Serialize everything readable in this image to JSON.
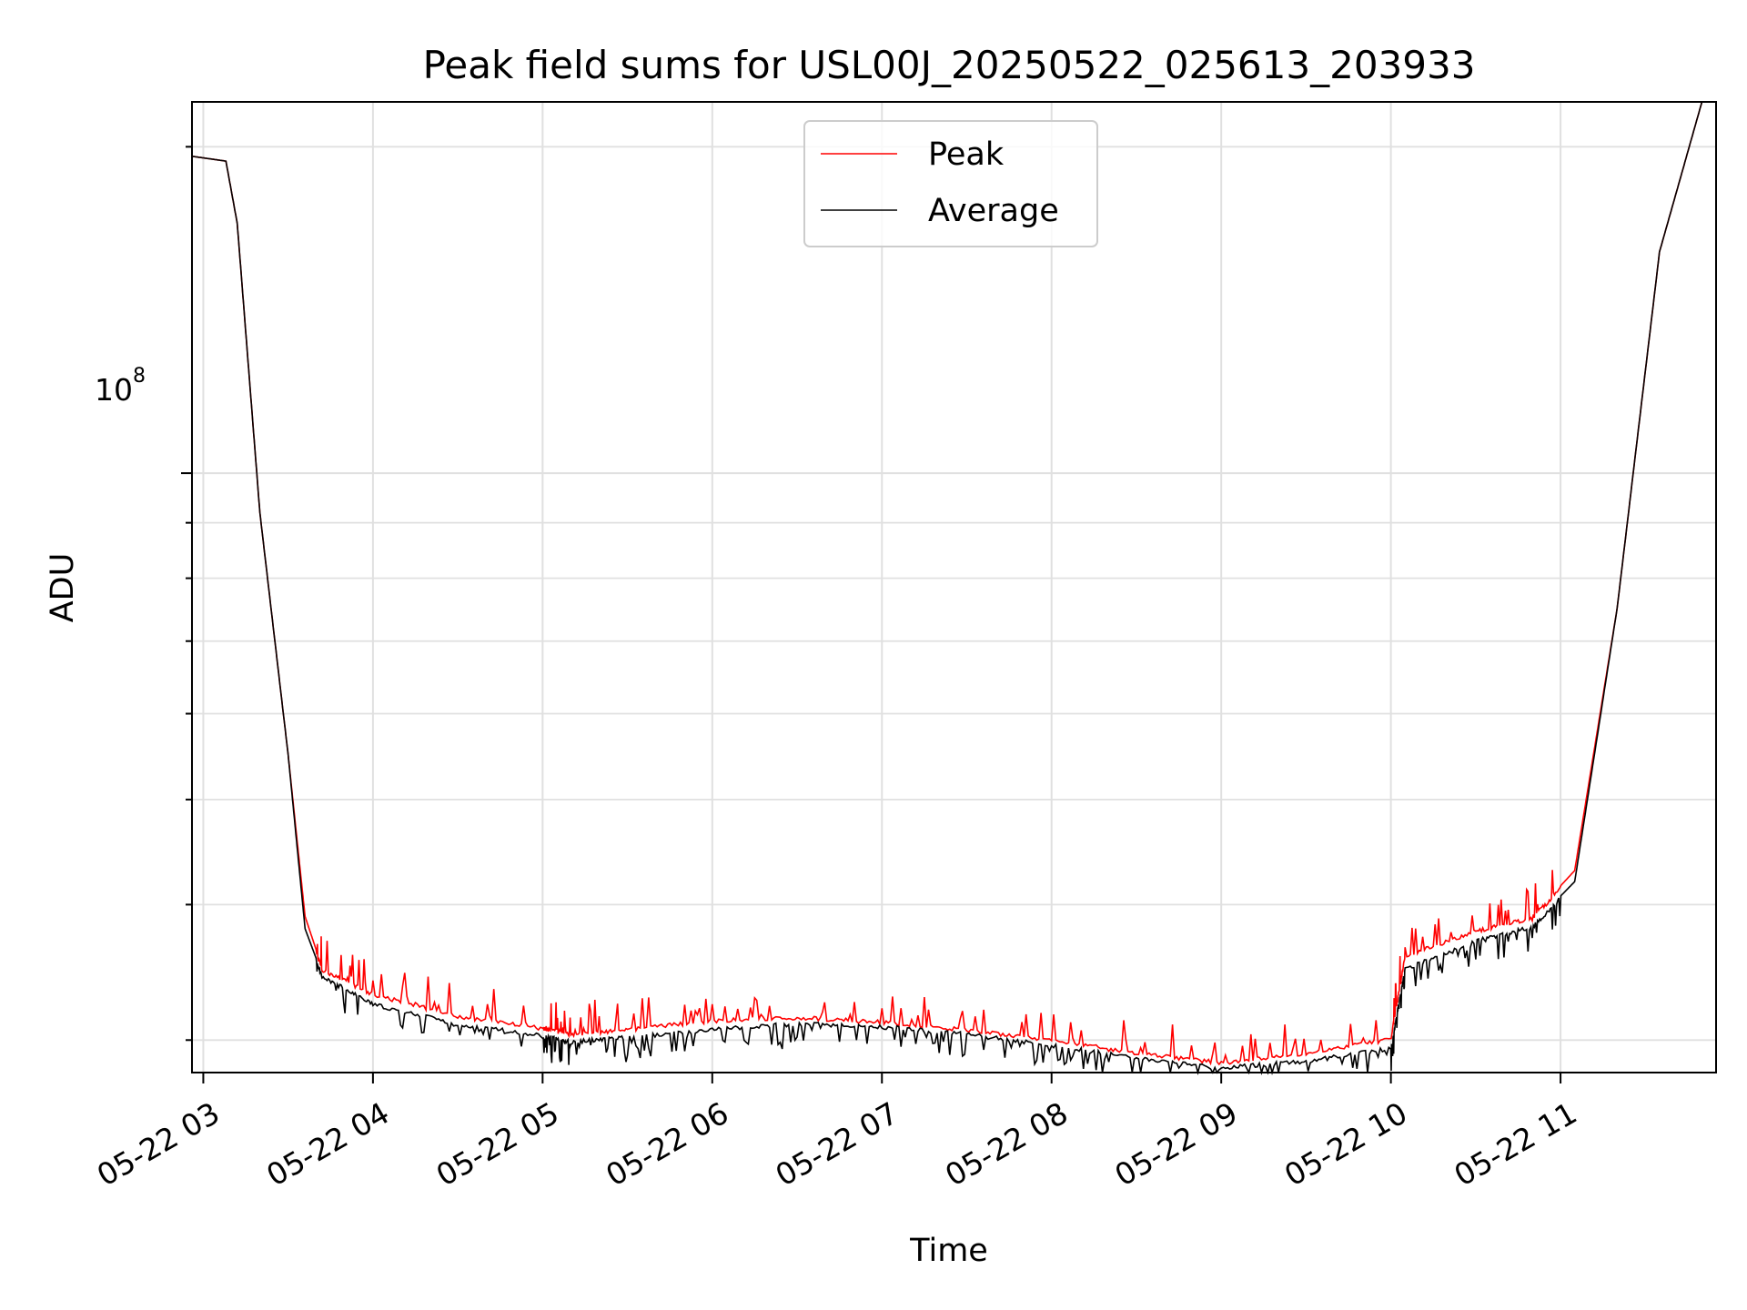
{
  "chart_data": {
    "type": "line",
    "title": "Peak field sums for USL00J_20250522_025613_203933",
    "xlabel": "Time",
    "ylabel": "ADU",
    "y_scale": "log",
    "ylim": [
      28000000,
      220000000
    ],
    "xlim": [
      "2025-05-22 02:56",
      "2025-05-22 11:55"
    ],
    "x_tick_labels": [
      "05-22 03",
      "05-22 04",
      "05-22 05",
      "05-22 06",
      "05-22 07",
      "05-22 08",
      "05-22 09",
      "05-22 10",
      "05-22 11"
    ],
    "x_ticks": [
      "2025-05-22 03:00",
      "2025-05-22 04:00",
      "2025-05-22 05:00",
      "2025-05-22 06:00",
      "2025-05-22 07:00",
      "2025-05-22 08:00",
      "2025-05-22 09:00",
      "2025-05-22 10:00",
      "2025-05-22 11:00"
    ],
    "y_major_tick_label": "10",
    "y_major_tick_exponent": "8",
    "y_major_tick_value": 100000000,
    "grid": true,
    "legend_position": "upper center",
    "series": [
      {
        "name": "Peak",
        "color": "#ff0000",
        "x": [
          "2025-05-22 02:56",
          "2025-05-22 03:08",
          "2025-05-22 03:12",
          "2025-05-22 03:20",
          "2025-05-22 03:30",
          "2025-05-22 03:36",
          "2025-05-22 03:42",
          "2025-05-22 04:00",
          "2025-05-22 04:30",
          "2025-05-22 05:00",
          "2025-05-22 05:10",
          "2025-05-22 05:30",
          "2025-05-22 06:00",
          "2025-05-22 06:30",
          "2025-05-22 07:00",
          "2025-05-22 07:30",
          "2025-05-22 08:00",
          "2025-05-22 08:30",
          "2025-05-22 09:00",
          "2025-05-22 09:30",
          "2025-05-22 10:00",
          "2025-05-22 10:05",
          "2025-05-22 10:30",
          "2025-05-22 10:50",
          "2025-05-22 11:05",
          "2025-05-22 11:20",
          "2025-05-22 11:35",
          "2025-05-22 11:50"
        ],
        "y": [
          196000000,
          194000000,
          170000000,
          92000000,
          55000000,
          39000000,
          35000000,
          33200000,
          31700000,
          30900000,
          30500000,
          30800000,
          31400000,
          31600000,
          31300000,
          30800000,
          30100000,
          29300000,
          28700000,
          29300000,
          30200000,
          36000000,
          38000000,
          39000000,
          43000000,
          75000000,
          160000000,
          220000000
        ]
      },
      {
        "name": "Average",
        "color": "#000000",
        "x": [
          "2025-05-22 02:56",
          "2025-05-22 03:08",
          "2025-05-22 03:12",
          "2025-05-22 03:20",
          "2025-05-22 03:30",
          "2025-05-22 03:36",
          "2025-05-22 03:42",
          "2025-05-22 04:00",
          "2025-05-22 04:30",
          "2025-05-22 05:00",
          "2025-05-22 05:10",
          "2025-05-22 05:30",
          "2025-05-22 06:00",
          "2025-05-22 06:30",
          "2025-05-22 07:00",
          "2025-05-22 07:30",
          "2025-05-22 08:00",
          "2025-05-22 08:30",
          "2025-05-22 09:00",
          "2025-05-22 09:30",
          "2025-05-22 10:00",
          "2025-05-22 10:05",
          "2025-05-22 10:30",
          "2025-05-22 10:50",
          "2025-05-22 11:05",
          "2025-05-22 11:20",
          "2025-05-22 11:35",
          "2025-05-22 11:50"
        ],
        "y": [
          196000000,
          194000000,
          170000000,
          92000000,
          55000000,
          38000000,
          34500000,
          32500000,
          31200000,
          30400000,
          30000000,
          30300000,
          30800000,
          31200000,
          31000000,
          30500000,
          29800000,
          29000000,
          28400000,
          28800000,
          29600000,
          35000000,
          37200000,
          38300000,
          42000000,
          75000000,
          160000000,
          220000000
        ]
      }
    ]
  }
}
